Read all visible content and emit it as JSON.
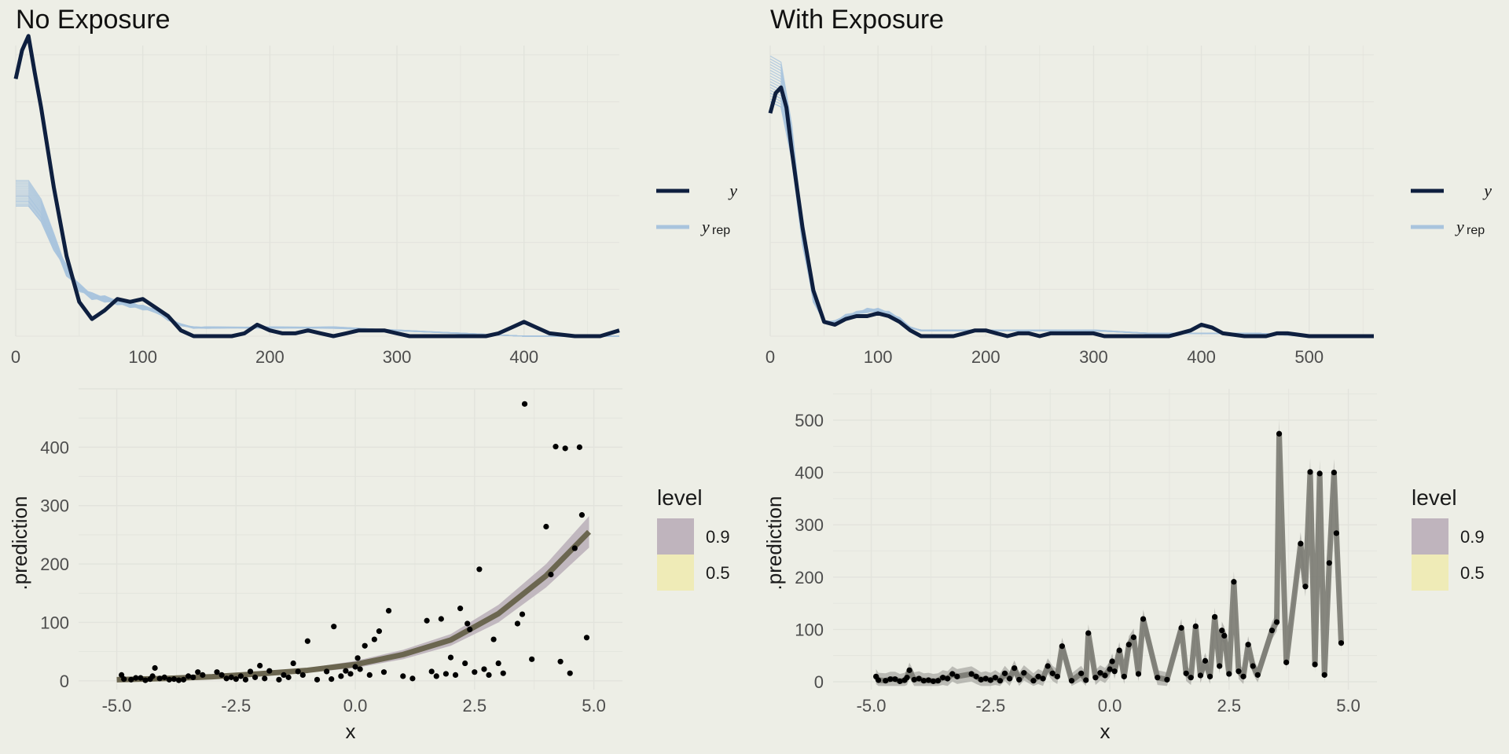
{
  "panels": [
    {
      "id": "no-exposure",
      "title": "No Exposure"
    },
    {
      "id": "with-exposure",
      "title": "With Exposure"
    }
  ],
  "legend": {
    "y_label": "y",
    "yrep_label": "y",
    "yrep_sub": "rep",
    "level_title": "level",
    "level_90": "0.9",
    "level_50": "0.5"
  },
  "colors": {
    "background": "#edeee6",
    "grid": "#e2e3dc",
    "y_line": "#0e1f3f",
    "yrep_line": "#a9c4dd",
    "band_90": "#bfb4bd",
    "band_50": "#efebb7",
    "fit_line_left": "#6b6650",
    "fit_line_right": "#7a7a72",
    "points": "#000000"
  },
  "chart_data": [
    {
      "type": "line",
      "panel": "No Exposure",
      "title": "No Exposure",
      "xlabel": "",
      "ylabel": "",
      "xlim": [
        0,
        475
      ],
      "xticks": [
        0,
        100,
        200,
        300,
        400
      ],
      "y_visible": false,
      "grid": true,
      "legend_position": "right",
      "series": [
        {
          "name": "y",
          "x": [
            0,
            5,
            10,
            15,
            20,
            30,
            40,
            50,
            60,
            70,
            80,
            90,
            100,
            110,
            120,
            130,
            140,
            150,
            160,
            170,
            180,
            190,
            200,
            210,
            220,
            230,
            240,
            250,
            260,
            270,
            280,
            290,
            300,
            310,
            330,
            350,
            370,
            380,
            390,
            400,
            410,
            420,
            440,
            460,
            475
          ],
          "values": [
            0.9,
            1.0,
            1.05,
            0.92,
            0.8,
            0.52,
            0.28,
            0.12,
            0.06,
            0.09,
            0.13,
            0.12,
            0.13,
            0.1,
            0.07,
            0.02,
            0,
            0,
            0,
            0,
            0.01,
            0.04,
            0.02,
            0.01,
            0.01,
            0.02,
            0.01,
            0,
            0.01,
            0.02,
            0.02,
            0.02,
            0.01,
            0,
            0,
            0,
            0,
            0.01,
            0.03,
            0.05,
            0.03,
            0.01,
            0,
            0,
            0.02
          ]
        },
        {
          "name": "y_rep",
          "x": [
            0,
            10,
            20,
            30,
            40,
            50,
            60,
            70,
            80,
            90,
            100,
            110,
            120,
            130,
            140,
            150,
            200,
            250,
            300,
            350,
            400,
            450,
            475
          ],
          "values": [
            0.5,
            0.5,
            0.44,
            0.33,
            0.23,
            0.17,
            0.14,
            0.13,
            0.12,
            0.11,
            0.1,
            0.09,
            0.06,
            0.04,
            0.03,
            0.03,
            0.03,
            0.03,
            0.02,
            0.01,
            0,
            0,
            0
          ],
          "draws": 20
        }
      ]
    },
    {
      "type": "line",
      "panel": "With Exposure",
      "title": "With Exposure",
      "xlabel": "",
      "ylabel": "",
      "xlim": [
        0,
        560
      ],
      "xticks": [
        0,
        100,
        200,
        300,
        400,
        500
      ],
      "y_visible": false,
      "grid": true,
      "legend_position": "right",
      "series": [
        {
          "name": "y",
          "x": [
            0,
            5,
            10,
            15,
            20,
            30,
            40,
            50,
            60,
            70,
            80,
            90,
            100,
            110,
            120,
            130,
            140,
            150,
            160,
            170,
            180,
            190,
            200,
            210,
            220,
            230,
            240,
            250,
            260,
            270,
            280,
            290,
            300,
            310,
            330,
            350,
            370,
            380,
            390,
            400,
            410,
            420,
            440,
            460,
            470,
            480,
            500,
            560
          ],
          "values": [
            0.78,
            0.85,
            0.87,
            0.8,
            0.65,
            0.38,
            0.16,
            0.05,
            0.04,
            0.06,
            0.07,
            0.07,
            0.08,
            0.07,
            0.05,
            0.02,
            0,
            0,
            0,
            0,
            0.01,
            0.02,
            0.02,
            0.01,
            0,
            0.01,
            0.01,
            0,
            0.01,
            0.01,
            0.01,
            0.01,
            0.01,
            0,
            0,
            0,
            0,
            0.01,
            0.02,
            0.04,
            0.03,
            0.01,
            0,
            0,
            0.01,
            0.01,
            0,
            0
          ]
        },
        {
          "name": "y_rep",
          "x": [
            0,
            10,
            20,
            30,
            40,
            50,
            60,
            70,
            80,
            90,
            100,
            110,
            120,
            130,
            140,
            150,
            200,
            250,
            300,
            350,
            400,
            450,
            500,
            560
          ],
          "values": [
            0.9,
            0.88,
            0.68,
            0.35,
            0.13,
            0.05,
            0.05,
            0.07,
            0.08,
            0.09,
            0.09,
            0.08,
            0.06,
            0.03,
            0.02,
            0.02,
            0.02,
            0.02,
            0.02,
            0.01,
            0.01,
            0.01,
            0,
            0
          ],
          "draws": 20
        }
      ]
    },
    {
      "type": "scatter",
      "panel": "No Exposure",
      "xlabel": "x",
      "ylabel": ".prediction",
      "xlim": [
        -5.8,
        5.6
      ],
      "ylim": [
        -15,
        500
      ],
      "xticks": [
        -5.0,
        -2.5,
        0.0,
        2.5,
        5.0
      ],
      "xtick_labels": [
        "-5.0",
        "-2.5",
        "0.0",
        "2.5",
        "5.0"
      ],
      "yticks": [
        0,
        100,
        200,
        300,
        400
      ],
      "grid": true,
      "points": [
        [
          -4.9,
          10
        ],
        [
          -4.85,
          3
        ],
        [
          -4.7,
          2
        ],
        [
          -4.6,
          5
        ],
        [
          -4.5,
          5
        ],
        [
          -4.4,
          1
        ],
        [
          -4.3,
          3
        ],
        [
          -4.25,
          8
        ],
        [
          -4.2,
          22
        ],
        [
          -4.1,
          4
        ],
        [
          -4.0,
          6
        ],
        [
          -3.9,
          2
        ],
        [
          -3.8,
          3
        ],
        [
          -3.7,
          1
        ],
        [
          -3.6,
          2
        ],
        [
          -3.5,
          8
        ],
        [
          -3.4,
          6
        ],
        [
          -3.3,
          15
        ],
        [
          -3.2,
          10
        ],
        [
          -2.9,
          15
        ],
        [
          -2.8,
          10
        ],
        [
          -2.7,
          4
        ],
        [
          -2.6,
          6
        ],
        [
          -2.5,
          3
        ],
        [
          -2.4,
          8
        ],
        [
          -2.3,
          2
        ],
        [
          -2.2,
          16
        ],
        [
          -2.1,
          6
        ],
        [
          -2.0,
          26
        ],
        [
          -1.9,
          4
        ],
        [
          -1.8,
          17
        ],
        [
          -1.6,
          2
        ],
        [
          -1.5,
          10
        ],
        [
          -1.4,
          6
        ],
        [
          -1.3,
          30
        ],
        [
          -1.2,
          16
        ],
        [
          -1.1,
          10
        ],
        [
          -1.0,
          68
        ],
        [
          -0.8,
          2
        ],
        [
          -0.6,
          16
        ],
        [
          -0.5,
          3
        ],
        [
          -0.45,
          93
        ],
        [
          -0.3,
          8
        ],
        [
          -0.2,
          17
        ],
        [
          -0.1,
          12
        ],
        [
          0.0,
          24
        ],
        [
          0.05,
          39
        ],
        [
          0.1,
          20
        ],
        [
          0.2,
          60
        ],
        [
          0.3,
          10
        ],
        [
          0.4,
          71
        ],
        [
          0.5,
          85
        ],
        [
          0.6,
          15
        ],
        [
          0.7,
          120
        ],
        [
          1.0,
          8
        ],
        [
          1.2,
          4
        ],
        [
          1.5,
          103
        ],
        [
          1.6,
          16
        ],
        [
          1.7,
          8
        ],
        [
          1.8,
          106
        ],
        [
          1.9,
          12
        ],
        [
          2.0,
          40
        ],
        [
          2.1,
          10
        ],
        [
          2.2,
          124
        ],
        [
          2.3,
          30
        ],
        [
          2.35,
          98
        ],
        [
          2.4,
          88
        ],
        [
          2.5,
          15
        ],
        [
          2.6,
          191
        ],
        [
          2.7,
          20
        ],
        [
          2.8,
          10
        ],
        [
          2.9,
          71
        ],
        [
          3.0,
          30
        ],
        [
          3.1,
          13
        ],
        [
          3.4,
          98
        ],
        [
          3.5,
          114
        ],
        [
          3.55,
          474
        ],
        [
          3.7,
          37
        ],
        [
          4.0,
          264
        ],
        [
          4.1,
          182
        ],
        [
          4.2,
          401
        ],
        [
          4.3,
          33
        ],
        [
          4.4,
          398
        ],
        [
          4.5,
          13
        ],
        [
          4.6,
          227
        ],
        [
          4.7,
          400
        ],
        [
          4.75,
          284
        ],
        [
          4.85,
          74
        ]
      ],
      "fit": {
        "x": [
          -5.0,
          -4.0,
          -3.0,
          -2.0,
          -1.0,
          0.0,
          1.0,
          2.0,
          3.0,
          4.0,
          4.9
        ],
        "median": [
          2,
          4,
          7,
          12,
          18,
          28,
          45,
          70,
          115,
          180,
          255
        ],
        "lower_90": [
          0,
          2,
          5,
          9,
          14,
          22,
          37,
          60,
          100,
          160,
          228
        ],
        "upper_90": [
          4,
          6,
          10,
          15,
          22,
          34,
          53,
          80,
          130,
          200,
          282
        ]
      }
    },
    {
      "type": "scatter",
      "panel": "With Exposure",
      "xlabel": "x",
      "ylabel": ".prediction",
      "xlim": [
        -5.8,
        5.6
      ],
      "ylim": [
        -15,
        560
      ],
      "xticks": [
        -5.0,
        -2.5,
        0.0,
        2.5,
        5.0
      ],
      "xtick_labels": [
        "-5.0",
        "-2.5",
        "0.0",
        "2.5",
        "5.0"
      ],
      "yticks": [
        0,
        100,
        200,
        300,
        400,
        500
      ],
      "grid": true,
      "points": [
        [
          -4.9,
          10
        ],
        [
          -4.85,
          3
        ],
        [
          -4.7,
          2
        ],
        [
          -4.6,
          5
        ],
        [
          -4.5,
          5
        ],
        [
          -4.4,
          1
        ],
        [
          -4.3,
          3
        ],
        [
          -4.25,
          8
        ],
        [
          -4.2,
          22
        ],
        [
          -4.1,
          4
        ],
        [
          -4.0,
          6
        ],
        [
          -3.9,
          2
        ],
        [
          -3.8,
          3
        ],
        [
          -3.7,
          1
        ],
        [
          -3.6,
          2
        ],
        [
          -3.5,
          8
        ],
        [
          -3.4,
          6
        ],
        [
          -3.3,
          15
        ],
        [
          -3.2,
          10
        ],
        [
          -2.9,
          15
        ],
        [
          -2.8,
          10
        ],
        [
          -2.7,
          4
        ],
        [
          -2.6,
          6
        ],
        [
          -2.5,
          3
        ],
        [
          -2.4,
          8
        ],
        [
          -2.3,
          2
        ],
        [
          -2.2,
          16
        ],
        [
          -2.1,
          6
        ],
        [
          -2.0,
          26
        ],
        [
          -1.9,
          4
        ],
        [
          -1.8,
          17
        ],
        [
          -1.6,
          2
        ],
        [
          -1.5,
          10
        ],
        [
          -1.4,
          6
        ],
        [
          -1.3,
          30
        ],
        [
          -1.2,
          16
        ],
        [
          -1.1,
          10
        ],
        [
          -1.0,
          68
        ],
        [
          -0.8,
          2
        ],
        [
          -0.6,
          16
        ],
        [
          -0.5,
          3
        ],
        [
          -0.45,
          93
        ],
        [
          -0.3,
          8
        ],
        [
          -0.2,
          17
        ],
        [
          -0.1,
          12
        ],
        [
          0.0,
          24
        ],
        [
          0.05,
          39
        ],
        [
          0.1,
          20
        ],
        [
          0.2,
          60
        ],
        [
          0.3,
          10
        ],
        [
          0.4,
          71
        ],
        [
          0.5,
          85
        ],
        [
          0.6,
          15
        ],
        [
          0.7,
          120
        ],
        [
          1.0,
          8
        ],
        [
          1.2,
          4
        ],
        [
          1.5,
          103
        ],
        [
          1.6,
          16
        ],
        [
          1.7,
          8
        ],
        [
          1.8,
          106
        ],
        [
          1.9,
          12
        ],
        [
          2.0,
          40
        ],
        [
          2.1,
          10
        ],
        [
          2.2,
          124
        ],
        [
          2.3,
          30
        ],
        [
          2.35,
          98
        ],
        [
          2.4,
          88
        ],
        [
          2.5,
          15
        ],
        [
          2.6,
          191
        ],
        [
          2.7,
          20
        ],
        [
          2.8,
          10
        ],
        [
          2.9,
          71
        ],
        [
          3.0,
          30
        ],
        [
          3.1,
          13
        ],
        [
          3.4,
          98
        ],
        [
          3.5,
          114
        ],
        [
          3.55,
          474
        ],
        [
          3.7,
          37
        ],
        [
          4.0,
          264
        ],
        [
          4.1,
          182
        ],
        [
          4.2,
          401
        ],
        [
          4.3,
          33
        ],
        [
          4.4,
          398
        ],
        [
          4.5,
          13
        ],
        [
          4.6,
          227
        ],
        [
          4.7,
          400
        ],
        [
          4.75,
          284
        ],
        [
          4.85,
          74
        ]
      ],
      "fit": {
        "follows_points": true,
        "band_halfwidth": 14
      }
    }
  ]
}
